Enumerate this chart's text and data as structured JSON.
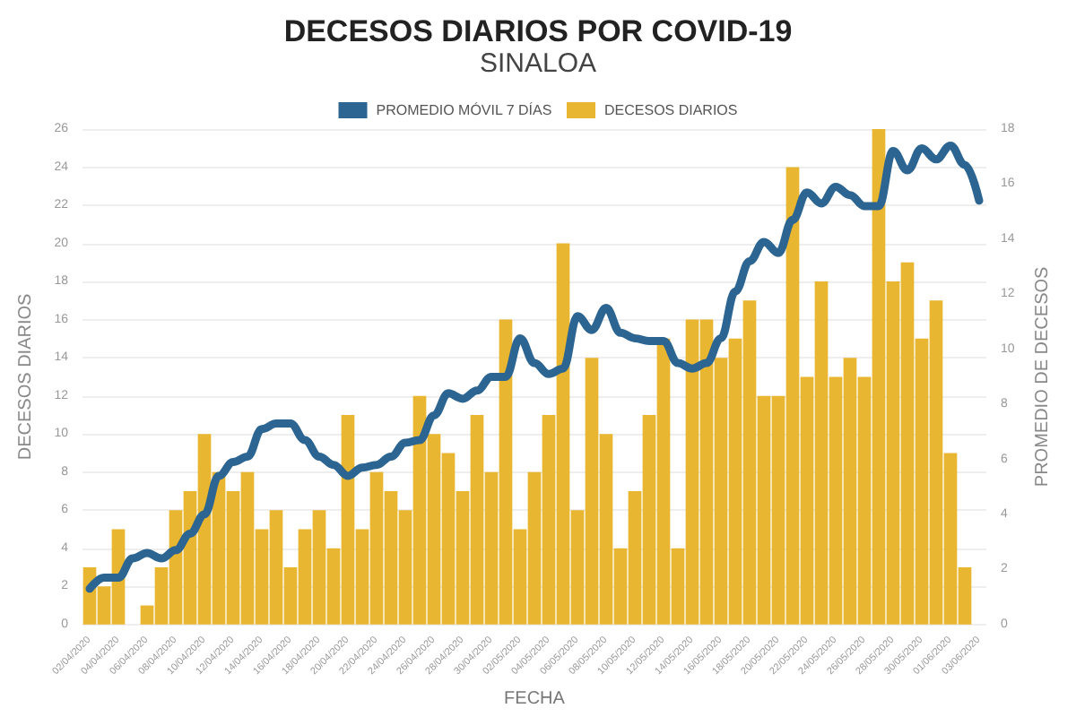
{
  "chart_data": {
    "type": "bar",
    "title": "DECESOS DIARIOS POR COVID-19",
    "subtitle": "SINALOA",
    "xlabel": "FECHA",
    "ylabel": "DECESOS DIARIOS",
    "y2label": "PROMEDIO DE DECESOS",
    "categories": [
      "02/04/2020",
      null,
      "04/04/2020",
      null,
      "06/04/2020",
      null,
      "08/04/2020",
      null,
      "10/04/2020",
      null,
      "12/04/2020",
      null,
      "14/04/2020",
      null,
      "16/04/2020",
      null,
      "18/04/2020",
      null,
      "20/04/2020",
      null,
      "22/04/2020",
      null,
      "24/04/2020",
      null,
      "26/04/2020",
      null,
      "28/04/2020",
      null,
      "30/04/2020",
      null,
      "02/05/2020",
      null,
      "04/05/2020",
      null,
      "06/05/2020",
      null,
      "08/05/2020",
      null,
      "10/05/2020",
      null,
      "12/05/2020",
      null,
      "14/05/2020",
      null,
      "16/05/2020",
      null,
      "18/05/2020",
      null,
      "20/05/2020",
      null,
      "22/05/2020",
      null,
      "24/05/2020",
      null,
      "26/05/2020",
      null,
      "28/05/2020",
      null,
      "30/05/2020",
      null,
      "01/06/2020",
      null,
      "03/06/2020"
    ],
    "series": [
      {
        "name": "PROMEDIO MÓVIL 7 DÍAS",
        "type": "line",
        "axis": "y2",
        "color": "#2c6591",
        "values": [
          1.3,
          1.7,
          1.7,
          2.4,
          2.6,
          2.4,
          2.7,
          3.3,
          4.0,
          5.4,
          5.9,
          6.1,
          7.1,
          7.3,
          7.3,
          6.7,
          6.1,
          5.8,
          5.4,
          5.7,
          5.8,
          6.1,
          6.6,
          6.7,
          7.6,
          8.4,
          8.2,
          8.5,
          9.0,
          9.0,
          10.4,
          9.5,
          9.1,
          9.3,
          11.2,
          10.7,
          11.5,
          10.6,
          10.4,
          10.3,
          10.3,
          9.5,
          9.3,
          9.5,
          10.4,
          12.1,
          13.2,
          13.9,
          13.5,
          14.7,
          15.7,
          15.3,
          15.9,
          15.6,
          15.2,
          15.2,
          17.2,
          16.5,
          17.3,
          16.9,
          17.4,
          16.7,
          15.4
        ]
      },
      {
        "name": "DECESOS DIARIOS",
        "color": "#e8b630",
        "values": [
          3,
          2,
          5,
          0,
          1,
          3,
          6,
          7,
          10,
          8,
          7,
          8,
          5,
          6,
          3,
          5,
          6,
          4,
          11,
          5,
          8,
          7,
          6,
          12,
          10,
          9,
          7,
          11,
          8,
          16,
          5,
          8,
          11,
          20,
          6,
          14,
          10,
          4,
          7,
          11,
          15,
          4,
          16,
          16,
          14,
          15,
          17,
          12,
          12,
          24,
          13,
          18,
          13,
          14,
          13,
          26,
          18,
          19,
          15,
          17,
          9,
          3,
          0
        ]
      }
    ],
    "ylim": [
      0,
      26
    ],
    "yticks": [
      0,
      2,
      4,
      6,
      8,
      10,
      12,
      14,
      16,
      18,
      20,
      22,
      24,
      26
    ],
    "y2lim": [
      0,
      18
    ],
    "y2ticks": [
      0,
      2,
      4,
      6,
      8,
      10,
      12,
      14,
      16,
      18
    ],
    "grid": "y",
    "legend": "top",
    "marker": "none",
    "line_style": "solid"
  }
}
